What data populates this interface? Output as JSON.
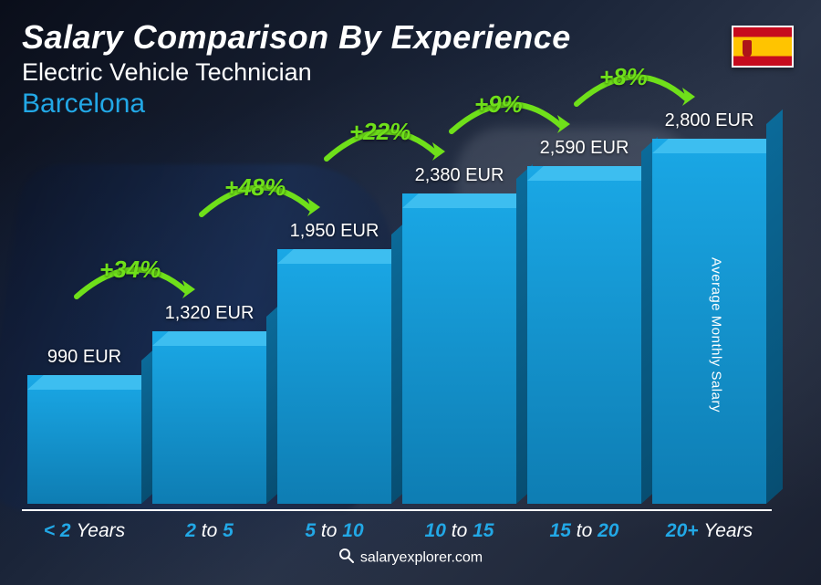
{
  "header": {
    "title": "Salary Comparison By Experience",
    "subtitle": "Electric Vehicle Technician",
    "location": "Barcelona",
    "flag_country": "Spain"
  },
  "chart": {
    "type": "bar",
    "y_axis_label": "Average Monthly Salary",
    "max_value": 2800,
    "bar_front_color": "#1aa8e6",
    "bar_front_gradient_dark": "#0e7db3",
    "bar_top_color": "#3dbef0",
    "bar_side_color": "#0b6a99",
    "pct_color": "#6fe01a",
    "pct_fontsize": 26,
    "value_fontsize": 20,
    "xlabel_color": "#22a8e6",
    "xlabel_fontsize": 21,
    "axis_color": "#ffffff",
    "background_colors": [
      "#0a0e1a",
      "#1a2438"
    ],
    "bars": [
      {
        "category_prefix": "< 2",
        "category_suffix": "Years",
        "value": 990,
        "value_label": "990 EUR",
        "pct": null
      },
      {
        "category_prefix": "2",
        "category_mid": "to",
        "category_suffix": "5",
        "value": 1320,
        "value_label": "1,320 EUR",
        "pct": "+34%"
      },
      {
        "category_prefix": "5",
        "category_mid": "to",
        "category_suffix": "10",
        "value": 1950,
        "value_label": "1,950 EUR",
        "pct": "+48%"
      },
      {
        "category_prefix": "10",
        "category_mid": "to",
        "category_suffix": "15",
        "value": 2380,
        "value_label": "2,380 EUR",
        "pct": "+22%"
      },
      {
        "category_prefix": "15",
        "category_mid": "to",
        "category_suffix": "20",
        "value": 2590,
        "value_label": "2,590 EUR",
        "pct": "+9%"
      },
      {
        "category_prefix": "20+",
        "category_suffix": "Years",
        "value": 2800,
        "value_label": "2,800 EUR",
        "pct": "+8%"
      }
    ]
  },
  "footer": {
    "site": "salaryexplorer.com"
  }
}
